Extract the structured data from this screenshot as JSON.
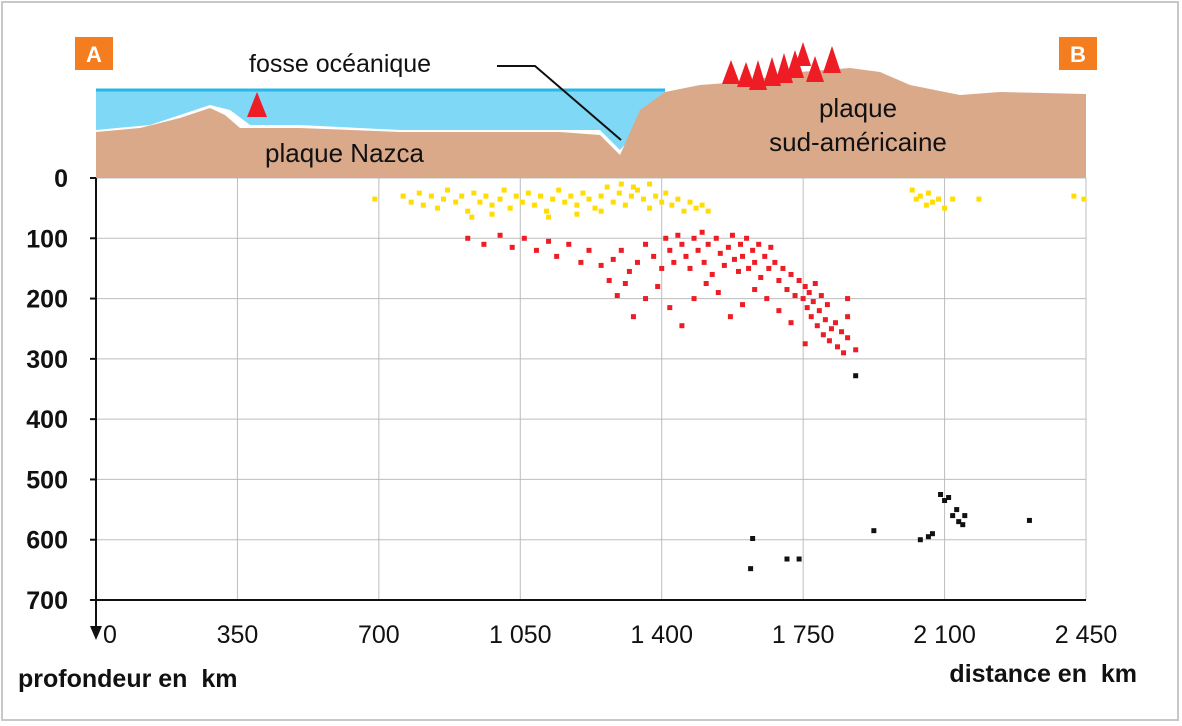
{
  "markers": {
    "a": "A",
    "b": "B"
  },
  "labels": {
    "trench": "fosse océanique",
    "nazca": "plaque Nazca",
    "south_american_line1": "plaque",
    "south_american_line2": "sud-américaine",
    "depth_axis": "profondeur en  km",
    "distance_axis": "distance en  km"
  },
  "colors": {
    "ocean": "#7fd8f6",
    "ocean_surface": "#29b6e8",
    "crust": "#d9a98a",
    "marker_bg": "#f47d20",
    "shallow_quakes": "#ffdd00",
    "intermediate_quakes": "#ee1c24",
    "deep_quakes": "#111111",
    "volcano": "#ee1c24"
  },
  "chart_data": {
    "type": "scatter",
    "xlabel": "distance en  km",
    "ylabel": "profondeur en  km",
    "xlim": [
      0,
      2450
    ],
    "ylim": [
      0,
      700
    ],
    "y_inverted": true,
    "x_ticks": [
      {
        "value": 0,
        "label": "0"
      },
      {
        "value": 350,
        "label": "350"
      },
      {
        "value": 700,
        "label": "700"
      },
      {
        "value": 1050,
        "label": "1 050"
      },
      {
        "value": 1400,
        "label": "1 400"
      },
      {
        "value": 1750,
        "label": "1 750"
      },
      {
        "value": 2100,
        "label": "2 100"
      },
      {
        "value": 2450,
        "label": "2 450"
      }
    ],
    "y_ticks": [
      {
        "value": 0,
        "label": "0"
      },
      {
        "value": 100,
        "label": "100"
      },
      {
        "value": 200,
        "label": "200"
      },
      {
        "value": 300,
        "label": "300"
      },
      {
        "value": 400,
        "label": "400"
      },
      {
        "value": 500,
        "label": "500"
      },
      {
        "value": 600,
        "label": "600"
      },
      {
        "value": 700,
        "label": "700"
      }
    ],
    "grid": true,
    "series": [
      {
        "color": "#ffdd00",
        "points": [
          [
            690,
            35
          ],
          [
            760,
            30
          ],
          [
            780,
            40
          ],
          [
            800,
            25
          ],
          [
            810,
            45
          ],
          [
            830,
            30
          ],
          [
            845,
            50
          ],
          [
            860,
            35
          ],
          [
            870,
            20
          ],
          [
            890,
            40
          ],
          [
            905,
            30
          ],
          [
            920,
            55
          ],
          [
            935,
            25
          ],
          [
            950,
            40
          ],
          [
            965,
            30
          ],
          [
            980,
            45
          ],
          [
            1000,
            35
          ],
          [
            1010,
            20
          ],
          [
            1025,
            50
          ],
          [
            1040,
            30
          ],
          [
            1055,
            40
          ],
          [
            1070,
            25
          ],
          [
            1085,
            45
          ],
          [
            1100,
            30
          ],
          [
            1115,
            55
          ],
          [
            1130,
            35
          ],
          [
            1145,
            20
          ],
          [
            1160,
            40
          ],
          [
            1175,
            30
          ],
          [
            1190,
            45
          ],
          [
            1205,
            25
          ],
          [
            1220,
            35
          ],
          [
            1235,
            50
          ],
          [
            1250,
            30
          ],
          [
            1265,
            15
          ],
          [
            1280,
            40
          ],
          [
            1295,
            25
          ],
          [
            1310,
            45
          ],
          [
            1325,
            30
          ],
          [
            1340,
            20
          ],
          [
            1355,
            35
          ],
          [
            1370,
            50
          ],
          [
            1385,
            30
          ],
          [
            1400,
            40
          ],
          [
            1410,
            25
          ],
          [
            1425,
            45
          ],
          [
            1440,
            35
          ],
          [
            1455,
            55
          ],
          [
            1470,
            40
          ],
          [
            1485,
            50
          ],
          [
            1500,
            45
          ],
          [
            1515,
            55
          ],
          [
            1300,
            10
          ],
          [
            1330,
            15
          ],
          [
            1370,
            10
          ],
          [
            1250,
            55
          ],
          [
            1190,
            60
          ],
          [
            1120,
            65
          ],
          [
            980,
            60
          ],
          [
            930,
            65
          ],
          [
            2020,
            20
          ],
          [
            2030,
            35
          ],
          [
            2040,
            30
          ],
          [
            2055,
            45
          ],
          [
            2060,
            25
          ],
          [
            2070,
            40
          ],
          [
            2085,
            35
          ],
          [
            2100,
            50
          ],
          [
            2120,
            35
          ],
          [
            2185,
            35
          ],
          [
            2420,
            30
          ],
          [
            2445,
            35
          ]
        ]
      },
      {
        "color": "#ee1c24",
        "points": [
          [
            920,
            100
          ],
          [
            960,
            110
          ],
          [
            1000,
            95
          ],
          [
            1030,
            115
          ],
          [
            1060,
            100
          ],
          [
            1090,
            120
          ],
          [
            1120,
            105
          ],
          [
            1140,
            130
          ],
          [
            1170,
            110
          ],
          [
            1200,
            140
          ],
          [
            1220,
            120
          ],
          [
            1250,
            145
          ],
          [
            1280,
            135
          ],
          [
            1300,
            120
          ],
          [
            1320,
            155
          ],
          [
            1340,
            140
          ],
          [
            1360,
            110
          ],
          [
            1380,
            130
          ],
          [
            1400,
            150
          ],
          [
            1410,
            100
          ],
          [
            1420,
            120
          ],
          [
            1430,
            140
          ],
          [
            1440,
            95
          ],
          [
            1450,
            110
          ],
          [
            1460,
            130
          ],
          [
            1470,
            150
          ],
          [
            1480,
            100
          ],
          [
            1490,
            120
          ],
          [
            1500,
            90
          ],
          [
            1505,
            140
          ],
          [
            1515,
            110
          ],
          [
            1525,
            160
          ],
          [
            1535,
            100
          ],
          [
            1545,
            125
          ],
          [
            1555,
            145
          ],
          [
            1565,
            115
          ],
          [
            1575,
            95
          ],
          [
            1580,
            135
          ],
          [
            1590,
            155
          ],
          [
            1595,
            110
          ],
          [
            1600,
            130
          ],
          [
            1610,
            100
          ],
          [
            1615,
            150
          ],
          [
            1625,
            120
          ],
          [
            1630,
            140
          ],
          [
            1640,
            110
          ],
          [
            1645,
            165
          ],
          [
            1655,
            130
          ],
          [
            1665,
            150
          ],
          [
            1670,
            115
          ],
          [
            1680,
            140
          ],
          [
            1690,
            170
          ],
          [
            1700,
            150
          ],
          [
            1710,
            185
          ],
          [
            1720,
            160
          ],
          [
            1730,
            195
          ],
          [
            1740,
            170
          ],
          [
            1750,
            200
          ],
          [
            1755,
            180
          ],
          [
            1760,
            215
          ],
          [
            1765,
            190
          ],
          [
            1770,
            230
          ],
          [
            1775,
            205
          ],
          [
            1780,
            175
          ],
          [
            1785,
            245
          ],
          [
            1790,
            220
          ],
          [
            1795,
            195
          ],
          [
            1800,
            260
          ],
          [
            1805,
            235
          ],
          [
            1810,
            210
          ],
          [
            1815,
            270
          ],
          [
            1820,
            250
          ],
          [
            1830,
            240
          ],
          [
            1835,
            280
          ],
          [
            1845,
            255
          ],
          [
            1850,
            290
          ],
          [
            1860,
            265
          ],
          [
            1880,
            285
          ],
          [
            1755,
            275
          ],
          [
            1720,
            240
          ],
          [
            1690,
            220
          ],
          [
            1660,
            200
          ],
          [
            1630,
            185
          ],
          [
            1600,
            210
          ],
          [
            1570,
            230
          ],
          [
            1540,
            190
          ],
          [
            1510,
            175
          ],
          [
            1480,
            200
          ],
          [
            1450,
            245
          ],
          [
            1420,
            215
          ],
          [
            1390,
            180
          ],
          [
            1360,
            200
          ],
          [
            1330,
            230
          ],
          [
            1310,
            175
          ],
          [
            1290,
            195
          ],
          [
            1270,
            170
          ],
          [
            1860,
            230
          ],
          [
            1860,
            200
          ]
        ]
      },
      {
        "color": "#111111",
        "points": [
          [
            1880,
            328
          ],
          [
            1925,
            585
          ],
          [
            2040,
            600
          ],
          [
            2060,
            595
          ],
          [
            2070,
            590
          ],
          [
            2090,
            525
          ],
          [
            2100,
            535
          ],
          [
            2110,
            530
          ],
          [
            2120,
            560
          ],
          [
            2130,
            550
          ],
          [
            2135,
            570
          ],
          [
            2145,
            575
          ],
          [
            2150,
            560
          ],
          [
            2310,
            568
          ],
          [
            1625,
            598
          ],
          [
            1620,
            648
          ],
          [
            1710,
            632
          ],
          [
            1740,
            632
          ]
        ]
      }
    ]
  }
}
